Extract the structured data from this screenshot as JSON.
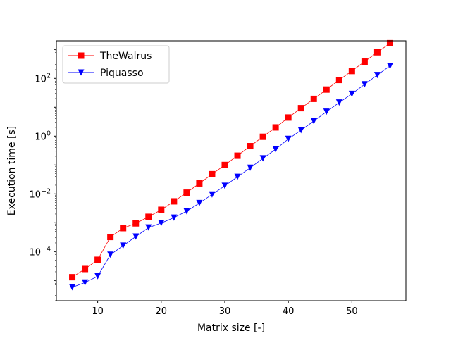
{
  "chart_data": {
    "type": "line",
    "title": "",
    "xlabel": "Matrix size [-]",
    "ylabel": "Execution time [s]",
    "xlim": [
      3.5,
      58.5
    ],
    "ylim_log10": [
      -5.7,
      3.3
    ],
    "yscale": "log",
    "grid": false,
    "legend_position": "top-left",
    "x_ticks": [
      10,
      20,
      30,
      40,
      50
    ],
    "y_ticks": [
      {
        "exp": -4,
        "base": "10",
        "sup": "−4"
      },
      {
        "exp": -2,
        "base": "10",
        "sup": "−2"
      },
      {
        "exp": 0,
        "base": "10",
        "sup": "0"
      },
      {
        "exp": 2,
        "base": "10",
        "sup": "2"
      }
    ],
    "x": [
      6,
      8,
      10,
      12,
      14,
      16,
      18,
      20,
      22,
      24,
      26,
      28,
      30,
      32,
      34,
      36,
      38,
      40,
      42,
      44,
      46,
      48,
      50,
      52,
      54,
      56
    ],
    "series": [
      {
        "name": "TheWalrus",
        "color": "#ff0000",
        "marker": "square",
        "values": [
          1.3e-05,
          2.5e-05,
          5.2e-05,
          0.00032,
          0.00065,
          0.00095,
          0.0016,
          0.0028,
          0.0055,
          0.011,
          0.023,
          0.048,
          0.1,
          0.21,
          0.45,
          0.95,
          2.0,
          4.4,
          9.3,
          19.5,
          41,
          88,
          180,
          380,
          800,
          1650
        ]
      },
      {
        "name": "Piquasso",
        "color": "#0000ff",
        "marker": "triangle-down",
        "values": [
          5.8e-06,
          8.5e-06,
          1.4e-05,
          7.8e-05,
          0.00016,
          0.00033,
          0.00068,
          0.00098,
          0.0015,
          0.0025,
          0.0048,
          0.0095,
          0.019,
          0.039,
          0.08,
          0.17,
          0.35,
          0.8,
          1.6,
          3.3,
          7,
          14.5,
          29,
          62,
          130,
          270
        ]
      }
    ]
  }
}
